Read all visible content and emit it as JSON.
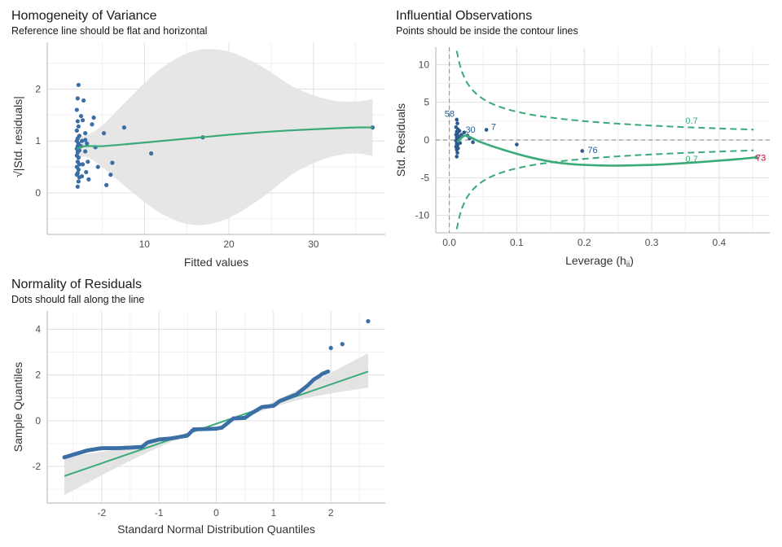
{
  "colors": {
    "point": "#3a6ea5",
    "point_dark": "#2a5a90",
    "line": "#3aaa78",
    "ribbon": "#e3e3e3",
    "highlight": "#cc0033",
    "grid": "#e0e0e0",
    "axis": "#b3b3b3",
    "refline": "#999999"
  },
  "panels": {
    "variance": {
      "title": "Homogeneity of Variance",
      "subtitle": "Reference line should be flat and horizontal"
    },
    "influence": {
      "title": "Influential Observations",
      "subtitle": "Points should be inside the contour lines"
    },
    "normality": {
      "title": "Normality of Residuals",
      "subtitle": "Dots should fall along the line"
    }
  },
  "chart_data": [
    {
      "type": "scatter",
      "title": "Homogeneity of Variance",
      "subtitle": "Reference line should be flat and horizontal",
      "xlabel": "Fitted values",
      "ylabel": "√|Std. residuals|",
      "xlim": [
        -1.5,
        38.5
      ],
      "ylim": [
        -0.8,
        2.9
      ],
      "xticks": [
        10,
        20,
        30
      ],
      "yticks": [
        0,
        1,
        2
      ],
      "points": [
        [
          2.2,
          2.08
        ],
        [
          2.1,
          1.82
        ],
        [
          2.0,
          1.6
        ],
        [
          2.1,
          1.38
        ],
        [
          2.2,
          1.28
        ],
        [
          2.0,
          1.2
        ],
        [
          2.3,
          1.1
        ],
        [
          2.1,
          1.05
        ],
        [
          2.0,
          1.0
        ],
        [
          2.2,
          0.95
        ],
        [
          2.1,
          0.9
        ],
        [
          2.0,
          0.85
        ],
        [
          2.3,
          0.82
        ],
        [
          2.1,
          0.78
        ],
        [
          2.0,
          0.72
        ],
        [
          2.2,
          0.68
        ],
        [
          2.1,
          0.6
        ],
        [
          2.3,
          0.55
        ],
        [
          2.0,
          0.5
        ],
        [
          2.2,
          0.45
        ],
        [
          2.1,
          0.38
        ],
        [
          2.0,
          0.35
        ],
        [
          2.3,
          0.3
        ],
        [
          2.2,
          0.22
        ],
        [
          2.1,
          0.12
        ],
        [
          2.5,
          1.48
        ],
        [
          2.7,
          1.4
        ],
        [
          2.6,
          1.0
        ],
        [
          2.5,
          0.9
        ],
        [
          2.7,
          0.55
        ],
        [
          2.6,
          0.32
        ],
        [
          2.8,
          1.78
        ],
        [
          3.0,
          1.15
        ],
        [
          3.2,
          0.95
        ],
        [
          3.0,
          0.8
        ],
        [
          3.3,
          0.6
        ],
        [
          3.1,
          0.4
        ],
        [
          3.4,
          0.26
        ],
        [
          3.0,
          1.02
        ],
        [
          4.0,
          1.45
        ],
        [
          3.8,
          1.32
        ],
        [
          4.2,
          0.88
        ],
        [
          4.5,
          0.5
        ],
        [
          5.2,
          1.15
        ],
        [
          5.5,
          0.15
        ],
        [
          6.0,
          0.35
        ],
        [
          6.2,
          0.58
        ],
        [
          7.6,
          1.26
        ],
        [
          10.8,
          0.76
        ],
        [
          16.9,
          1.07
        ],
        [
          37.0,
          1.26
        ]
      ],
      "smooth_x": [
        2.0,
        3.0,
        5.0,
        8.0,
        12.0,
        16.0,
        20.0,
        24.0,
        28.0,
        32.0,
        35.0,
        37.0
      ],
      "smooth_y": [
        0.85,
        0.9,
        0.9,
        0.94,
        1.0,
        1.06,
        1.12,
        1.17,
        1.21,
        1.24,
        1.26,
        1.26
      ],
      "ribbon_half_width": [
        0.25,
        0.2,
        0.4,
        0.85,
        1.4,
        1.68,
        1.6,
        1.25,
        0.8,
        0.55,
        0.5,
        0.55
      ]
    },
    {
      "type": "scatter",
      "title": "Influential Observations",
      "subtitle": "Points should be inside the contour lines",
      "xlabel": "Leverage (h",
      "xlabel_sub": "ii",
      "xlabel_close": ")",
      "ylabel": "Std. Residuals",
      "xlim": [
        -0.02,
        0.475
      ],
      "ylim": [
        -12.3,
        12.3
      ],
      "xticks": [
        0.0,
        0.1,
        0.2,
        0.3,
        0.4
      ],
      "xtick_labels": [
        "0.0",
        "0.1",
        "0.2",
        "0.3",
        "0.4"
      ],
      "yticks": [
        -10,
        -5,
        0,
        5,
        10
      ],
      "contour_label": "0.7",
      "points": [
        [
          0.011,
          2.7
        ],
        [
          0.012,
          2.2
        ],
        [
          0.01,
          1.7
        ],
        [
          0.013,
          1.4
        ],
        [
          0.011,
          1.1
        ],
        [
          0.012,
          0.9
        ],
        [
          0.01,
          0.7
        ],
        [
          0.013,
          0.5
        ],
        [
          0.011,
          0.3
        ],
        [
          0.012,
          0.1
        ],
        [
          0.01,
          -0.1
        ],
        [
          0.013,
          -0.3
        ],
        [
          0.011,
          -0.5
        ],
        [
          0.012,
          -0.7
        ],
        [
          0.01,
          -0.9
        ],
        [
          0.013,
          -1.1
        ],
        [
          0.011,
          -1.3
        ],
        [
          0.012,
          -1.7
        ],
        [
          0.011,
          -2.2
        ],
        [
          0.015,
          1.2
        ],
        [
          0.015,
          0.3
        ],
        [
          0.016,
          -0.4
        ],
        [
          0.018,
          0.7
        ],
        [
          0.022,
          1.0
        ],
        [
          0.027,
          0.6
        ],
        [
          0.03,
          0.2
        ],
        [
          0.035,
          -0.3
        ],
        [
          0.055,
          1.35
        ],
        [
          0.1,
          -0.6
        ],
        [
          0.197,
          -1.45
        ],
        [
          0.455,
          -2.3
        ]
      ],
      "labels": [
        {
          "text": "58",
          "x": -0.007,
          "y": 3.5,
          "highlight": false
        },
        {
          "text": "30",
          "x": 0.024,
          "y": 1.4,
          "highlight": false
        },
        {
          "text": "7",
          "x": 0.062,
          "y": 1.8,
          "highlight": false
        },
        {
          "text": "76",
          "x": 0.205,
          "y": -1.3,
          "highlight": false
        },
        {
          "text": "73",
          "x": 0.4545,
          "y": -2.3,
          "highlight": true
        }
      ],
      "smooth_x": [
        0.012,
        0.018,
        0.025,
        0.035,
        0.05,
        0.08,
        0.12,
        0.16,
        0.2,
        0.24,
        0.3,
        0.36,
        0.42,
        0.455
      ],
      "smooth_y": [
        -0.3,
        0.3,
        0.6,
        0.2,
        -0.4,
        -1.3,
        -2.3,
        -3.0,
        -3.3,
        -3.4,
        -3.3,
        -3.0,
        -2.6,
        -2.3
      ],
      "contour_k": 1.25
    },
    {
      "type": "scatter",
      "title": "Normality of Residuals",
      "subtitle": "Dots should fall along the line",
      "xlabel": "Standard Normal Distribution Quantiles",
      "ylabel": "Sample Quantiles",
      "xlim": [
        -2.95,
        2.95
      ],
      "ylim": [
        -3.6,
        4.8
      ],
      "xticks": [
        -2,
        -1,
        0,
        1,
        2
      ],
      "yticks": [
        -2,
        0,
        2,
        4
      ],
      "ref_line": [
        [
          -2.65,
          -2.42
        ],
        [
          2.65,
          2.15
        ]
      ],
      "ribbon_x": [
        -2.65,
        -1.5,
        -0.5,
        0.0,
        0.5,
        1.5,
        2.65
      ],
      "ribbon_lo": [
        -3.25,
        -1.75,
        -0.62,
        -0.2,
        0.18,
        0.95,
        1.45
      ],
      "ribbon_hi": [
        -1.6,
        -1.15,
        -0.55,
        -0.2,
        0.25,
        1.45,
        2.95
      ],
      "sample_n": 160,
      "sample_quantiles_segments": [
        [
          -2.65,
          -1.6
        ],
        [
          -2.25,
          -1.3
        ],
        [
          -2.0,
          -1.2
        ],
        [
          -1.7,
          -1.2
        ],
        [
          -1.3,
          -1.15
        ],
        [
          -1.2,
          -0.95
        ],
        [
          -1.0,
          -0.82
        ],
        [
          -0.8,
          -0.78
        ],
        [
          -0.5,
          -0.65
        ],
        [
          -0.4,
          -0.38
        ],
        [
          0.0,
          -0.35
        ],
        [
          0.1,
          -0.3
        ],
        [
          0.3,
          0.1
        ],
        [
          0.5,
          0.12
        ],
        [
          0.6,
          0.3
        ],
        [
          0.8,
          0.6
        ],
        [
          1.0,
          0.65
        ],
        [
          1.1,
          0.85
        ],
        [
          1.4,
          1.15
        ],
        [
          1.6,
          1.55
        ],
        [
          1.7,
          1.8
        ],
        [
          1.8,
          1.95
        ],
        [
          1.85,
          2.05
        ],
        [
          1.95,
          2.15
        ]
      ],
      "tail_points": [
        [
          2.0,
          3.18
        ],
        [
          2.2,
          3.35
        ],
        [
          2.65,
          4.35
        ]
      ]
    }
  ]
}
